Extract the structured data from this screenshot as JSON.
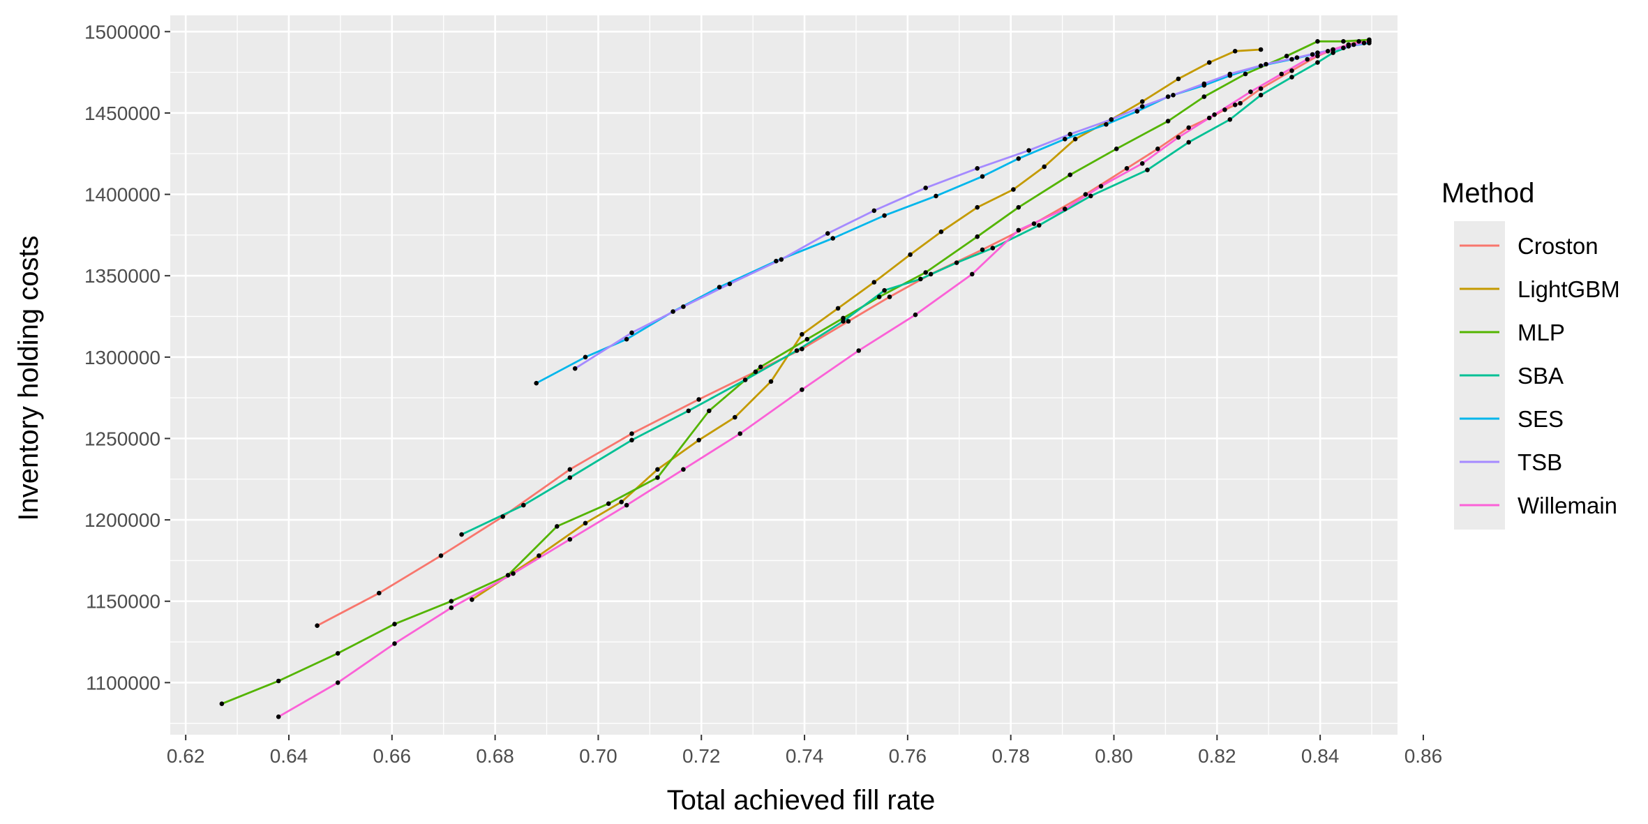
{
  "chart_data": {
    "type": "line",
    "title": "",
    "xlabel": "Total achieved fill rate",
    "ylabel": "Inventory holding costs",
    "xlim": [
      0.617,
      0.855
    ],
    "ylim": [
      1068000,
      1510000
    ],
    "x_ticks": [
      0.62,
      0.64,
      0.66,
      0.68,
      0.7,
      0.72,
      0.74,
      0.76,
      0.78,
      0.8,
      0.82,
      0.84,
      0.86
    ],
    "x_tick_labels": [
      "0.62",
      "0.64",
      "0.66",
      "0.68",
      "0.70",
      "0.72",
      "0.74",
      "0.76",
      "0.78",
      "0.80",
      "0.82",
      "0.84",
      "0.86"
    ],
    "y_ticks": [
      1100000,
      1150000,
      1200000,
      1250000,
      1300000,
      1350000,
      1400000,
      1450000,
      1500000
    ],
    "y_tick_labels": [
      "1100000",
      "1150000",
      "1200000",
      "1250000",
      "1300000",
      "1350000",
      "1400000",
      "1450000",
      "1500000"
    ],
    "grid": true,
    "background": "#ebebeb",
    "legend": {
      "title": "Method",
      "position": "right"
    },
    "point_color": "#000000",
    "series": [
      {
        "name": "Croston",
        "color": "#F8766D",
        "points": [
          [
            0.6455,
            1135000
          ],
          [
            0.6575,
            1155000
          ],
          [
            0.6695,
            1178000
          ],
          [
            0.6815,
            1202000
          ],
          [
            0.6945,
            1231000
          ],
          [
            0.7065,
            1253000
          ],
          [
            0.7195,
            1274000
          ],
          [
            0.7305,
            1291000
          ],
          [
            0.7395,
            1305000
          ],
          [
            0.7485,
            1322000
          ],
          [
            0.7565,
            1337000
          ],
          [
            0.7645,
            1351000
          ],
          [
            0.7745,
            1366000
          ],
          [
            0.7845,
            1382000
          ],
          [
            0.7945,
            1400000
          ],
          [
            0.8025,
            1416000
          ],
          [
            0.8085,
            1428000
          ],
          [
            0.8145,
            1441000
          ],
          [
            0.8185,
            1447000
          ],
          [
            0.8215,
            1452000
          ],
          [
            0.8235,
            1455000
          ],
          [
            0.8245,
            1456000
          ],
          [
            0.8285,
            1465000
          ],
          [
            0.8345,
            1476000
          ],
          [
            0.8395,
            1485000
          ],
          [
            0.8425,
            1489000
          ],
          [
            0.8455,
            1492000
          ],
          [
            0.8475,
            1494000
          ],
          [
            0.8495,
            1495000
          ]
        ]
      },
      {
        "name": "LightGBM",
        "color": "#C49A00",
        "points": [
          [
            0.6755,
            1151000
          ],
          [
            0.6885,
            1178000
          ],
          [
            0.6975,
            1198000
          ],
          [
            0.7045,
            1211000
          ],
          [
            0.7115,
            1231000
          ],
          [
            0.7195,
            1249000
          ],
          [
            0.7265,
            1263000
          ],
          [
            0.7335,
            1285000
          ],
          [
            0.7395,
            1314000
          ],
          [
            0.7465,
            1330000
          ],
          [
            0.7535,
            1346000
          ],
          [
            0.7605,
            1363000
          ],
          [
            0.7665,
            1377000
          ],
          [
            0.7735,
            1392000
          ],
          [
            0.7805,
            1403000
          ],
          [
            0.7865,
            1417000
          ],
          [
            0.7925,
            1434000
          ],
          [
            0.7995,
            1446000
          ],
          [
            0.8055,
            1457000
          ],
          [
            0.8125,
            1471000
          ],
          [
            0.8185,
            1481000
          ],
          [
            0.8235,
            1488000
          ],
          [
            0.8285,
            1489000
          ]
        ]
      },
      {
        "name": "MLP",
        "color": "#53B400",
        "points": [
          [
            0.627,
            1087000
          ],
          [
            0.638,
            1101000
          ],
          [
            0.6495,
            1118000
          ],
          [
            0.6605,
            1136000
          ],
          [
            0.6715,
            1150000
          ],
          [
            0.6825,
            1166000
          ],
          [
            0.692,
            1196000
          ],
          [
            0.702,
            1210000
          ],
          [
            0.7115,
            1226000
          ],
          [
            0.7215,
            1267000
          ],
          [
            0.7315,
            1294000
          ],
          [
            0.7405,
            1311000
          ],
          [
            0.7475,
            1324000
          ],
          [
            0.7545,
            1337000
          ],
          [
            0.7635,
            1352000
          ],
          [
            0.7735,
            1374000
          ],
          [
            0.7815,
            1392000
          ],
          [
            0.7915,
            1412000
          ],
          [
            0.8005,
            1428000
          ],
          [
            0.8105,
            1445000
          ],
          [
            0.8175,
            1460000
          ],
          [
            0.8255,
            1474000
          ],
          [
            0.8335,
            1485000
          ],
          [
            0.8395,
            1494000
          ],
          [
            0.8445,
            1494000
          ],
          [
            0.8495,
            1495000
          ]
        ]
      },
      {
        "name": "SBA",
        "color": "#00C094",
        "points": [
          [
            0.6735,
            1191000
          ],
          [
            0.6855,
            1209000
          ],
          [
            0.6945,
            1226000
          ],
          [
            0.7065,
            1249000
          ],
          [
            0.7175,
            1267000
          ],
          [
            0.7285,
            1286000
          ],
          [
            0.7385,
            1304000
          ],
          [
            0.7475,
            1322000
          ],
          [
            0.7555,
            1341000
          ],
          [
            0.7625,
            1348000
          ],
          [
            0.7695,
            1358000
          ],
          [
            0.7765,
            1367000
          ],
          [
            0.7855,
            1381000
          ],
          [
            0.7955,
            1399000
          ],
          [
            0.8065,
            1415000
          ],
          [
            0.8145,
            1432000
          ],
          [
            0.8225,
            1446000
          ],
          [
            0.8285,
            1461000
          ],
          [
            0.8345,
            1472000
          ],
          [
            0.8395,
            1481000
          ],
          [
            0.8425,
            1487000
          ],
          [
            0.8465,
            1492000
          ],
          [
            0.8495,
            1494000
          ]
        ]
      },
      {
        "name": "SES",
        "color": "#00B6EB",
        "points": [
          [
            0.688,
            1284000
          ],
          [
            0.6975,
            1300000
          ],
          [
            0.7055,
            1311000
          ],
          [
            0.7145,
            1328000
          ],
          [
            0.7235,
            1343000
          ],
          [
            0.7345,
            1359000
          ],
          [
            0.7455,
            1373000
          ],
          [
            0.7555,
            1387000
          ],
          [
            0.7655,
            1399000
          ],
          [
            0.7745,
            1411000
          ],
          [
            0.7815,
            1422000
          ],
          [
            0.7905,
            1434000
          ],
          [
            0.7985,
            1443000
          ],
          [
            0.8045,
            1451000
          ],
          [
            0.8105,
            1460000
          ],
          [
            0.8175,
            1467000
          ],
          [
            0.8225,
            1473000
          ],
          [
            0.8285,
            1479000
          ],
          [
            0.8345,
            1483000
          ],
          [
            0.8385,
            1486000
          ],
          [
            0.8425,
            1489000
          ],
          [
            0.8455,
            1491000
          ],
          [
            0.8495,
            1493000
          ]
        ]
      },
      {
        "name": "TSB",
        "color": "#A58AFF",
        "points": [
          [
            0.6955,
            1293000
          ],
          [
            0.7065,
            1315000
          ],
          [
            0.7165,
            1331000
          ],
          [
            0.7255,
            1345000
          ],
          [
            0.7355,
            1360000
          ],
          [
            0.7445,
            1376000
          ],
          [
            0.7535,
            1390000
          ],
          [
            0.7635,
            1404000
          ],
          [
            0.7735,
            1416000
          ],
          [
            0.7835,
            1427000
          ],
          [
            0.7915,
            1437000
          ],
          [
            0.7995,
            1446000
          ],
          [
            0.8055,
            1454000
          ],
          [
            0.8115,
            1461000
          ],
          [
            0.8175,
            1468000
          ],
          [
            0.8225,
            1474000
          ],
          [
            0.8295,
            1480000
          ],
          [
            0.8355,
            1484000
          ],
          [
            0.8395,
            1487000
          ],
          [
            0.8445,
            1490000
          ],
          [
            0.8485,
            1493000
          ]
        ]
      },
      {
        "name": "Willemain",
        "color": "#FB61D7",
        "points": [
          [
            0.638,
            1079000
          ],
          [
            0.6495,
            1100000
          ],
          [
            0.6605,
            1124000
          ],
          [
            0.6715,
            1146000
          ],
          [
            0.6835,
            1167000
          ],
          [
            0.6945,
            1188000
          ],
          [
            0.7055,
            1209000
          ],
          [
            0.7165,
            1231000
          ],
          [
            0.7275,
            1253000
          ],
          [
            0.7395,
            1280000
          ],
          [
            0.7505,
            1304000
          ],
          [
            0.7615,
            1326000
          ],
          [
            0.7725,
            1351000
          ],
          [
            0.7815,
            1378000
          ],
          [
            0.7905,
            1391000
          ],
          [
            0.7975,
            1405000
          ],
          [
            0.8055,
            1419000
          ],
          [
            0.8125,
            1435000
          ],
          [
            0.8195,
            1449000
          ],
          [
            0.8265,
            1463000
          ],
          [
            0.8325,
            1474000
          ],
          [
            0.8375,
            1483000
          ],
          [
            0.8415,
            1488000
          ],
          [
            0.8455,
            1492000
          ],
          [
            0.8495,
            1494000
          ]
        ]
      }
    ]
  }
}
